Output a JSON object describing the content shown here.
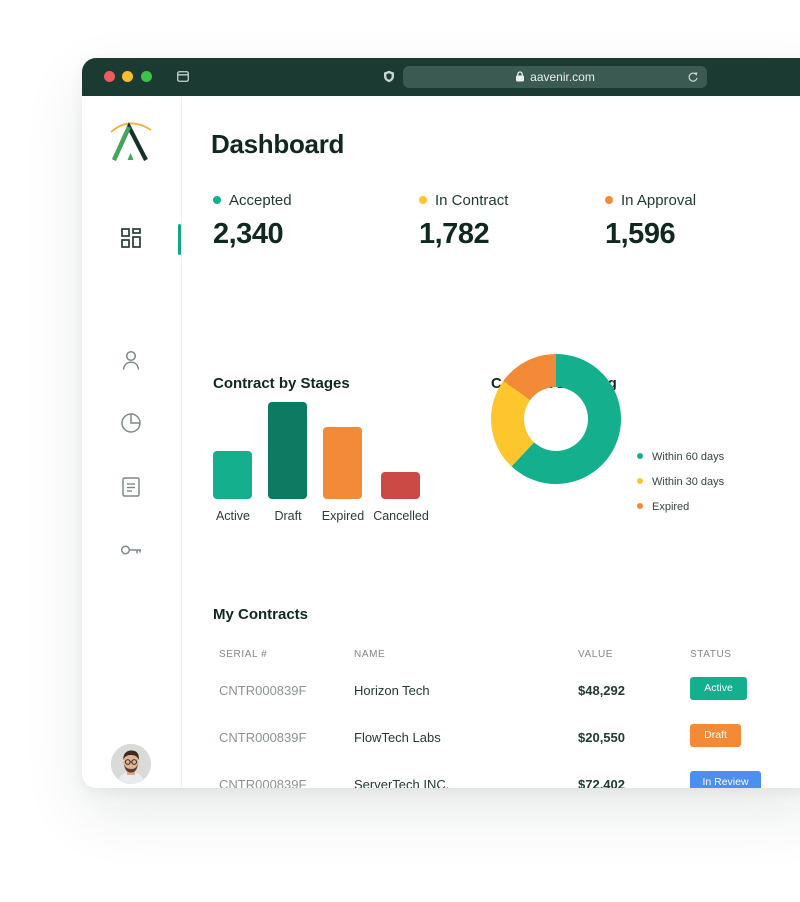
{
  "colors": {
    "titlebar": "#1b3a31",
    "teal": "#14b08e",
    "dark_teal": "#0e7a62",
    "orange": "#f28a38",
    "red": "#cc4a45",
    "yellow": "#fcc62c",
    "blue": "#4b8ff0"
  },
  "browser": {
    "url": "aavenir.com",
    "traffic_lights": [
      "#ef5b5b",
      "#f5be2d",
      "#3fc24c"
    ]
  },
  "sidebar": {
    "items": [
      {
        "icon": "dashboard-grid-icon",
        "active": true
      },
      {
        "icon": "user-icon",
        "active": false
      },
      {
        "icon": "pie-chart-icon",
        "active": false
      },
      {
        "icon": "document-icon",
        "active": false
      },
      {
        "icon": "key-icon",
        "active": false
      }
    ]
  },
  "page": {
    "title": "Dashboard"
  },
  "stats": [
    {
      "label": "Accepted",
      "value": "2,340",
      "color": "#14b08e"
    },
    {
      "label": "In Contract",
      "value": "1,782",
      "color": "#fcc62c"
    },
    {
      "label": "In Approval",
      "value": "1,596",
      "color": "#f28a38"
    }
  ],
  "stages_chart": {
    "title": "Contract by Stages"
  },
  "expiring_chart": {
    "title": "Contract Expiring"
  },
  "chart_data": [
    {
      "type": "bar",
      "title": "Contract by Stages",
      "categories": [
        "Active",
        "Draft",
        "Expired",
        "Cancelled"
      ],
      "values": [
        48,
        97,
        72,
        27
      ],
      "ylim": [
        0,
        100
      ],
      "colors": [
        "#14b08e",
        "#0e7a62",
        "#f28a38",
        "#cc4a45"
      ],
      "grid": false,
      "xlabel": "",
      "ylabel": ""
    },
    {
      "type": "pie",
      "title": "Contract Expiring",
      "donut": true,
      "labels": [
        "Within 60 days",
        "Within 30 days",
        "Expired"
      ],
      "values": [
        62,
        23,
        15
      ],
      "colors": [
        "#14b08e",
        "#fcc62c",
        "#f28a38"
      ],
      "legend": "right"
    }
  ],
  "contracts": {
    "title": "My Contracts",
    "columns": [
      "SERIAL #",
      "NAME",
      "VALUE",
      "STATUS"
    ],
    "rows": [
      {
        "serial": "CNTR000839F",
        "name": "Horizon Tech",
        "value": "$48,292",
        "status": "Active",
        "status_color": "#14b08e"
      },
      {
        "serial": "CNTR000839F",
        "name": "FlowTech Labs",
        "value": "$20,550",
        "status": "Draft",
        "status_color": "#f28a38"
      },
      {
        "serial": "CNTR000839F",
        "name": "ServerTech INC.",
        "value": "$72,402",
        "status": "In Review",
        "status_color": "#4b8ff0"
      }
    ]
  }
}
